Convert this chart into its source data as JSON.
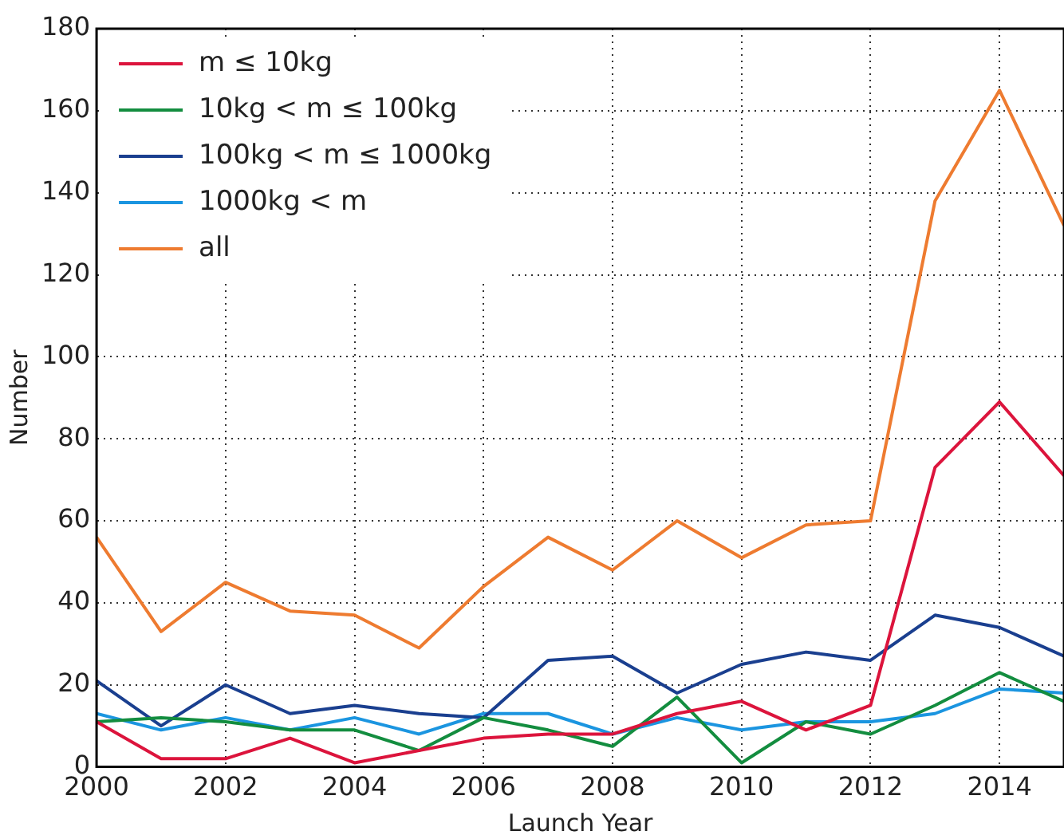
{
  "chart_data": {
    "type": "line",
    "xlabel": "Launch Year",
    "ylabel": "Number",
    "x": [
      2000,
      2001,
      2002,
      2003,
      2004,
      2005,
      2006,
      2007,
      2008,
      2009,
      2010,
      2011,
      2012,
      2013,
      2014,
      2015
    ],
    "xlim": [
      2000,
      2015
    ],
    "xticks": [
      2000,
      2002,
      2004,
      2006,
      2008,
      2010,
      2012,
      2014
    ],
    "ylim": [
      0,
      180
    ],
    "yticks": [
      0,
      20,
      40,
      60,
      80,
      100,
      120,
      140,
      160,
      180
    ],
    "grid": true,
    "legend": "top left",
    "marker": "none",
    "line_style": "solid",
    "series": [
      {
        "name": "m ≤ 10kg",
        "color": "#dc143c",
        "values": [
          11,
          2,
          2,
          7,
          1,
          4,
          7,
          8,
          8,
          13,
          16,
          9,
          15,
          73,
          89,
          71
        ]
      },
      {
        "name": "10kg < m ≤ 100kg",
        "color": "#138d3f",
        "values": [
          11,
          12,
          11,
          9,
          9,
          4,
          12,
          9,
          5,
          17,
          1,
          11,
          8,
          15,
          23,
          16
        ]
      },
      {
        "name": "100kg < m ≤ 1000kg",
        "color": "#1a3f8f",
        "values": [
          21,
          10,
          20,
          13,
          15,
          13,
          12,
          26,
          27,
          18,
          25,
          28,
          26,
          37,
          34,
          27
        ]
      },
      {
        "name": "1000kg < m",
        "color": "#1b95e0",
        "values": [
          13,
          9,
          12,
          9,
          12,
          8,
          13,
          13,
          8,
          12,
          9,
          11,
          11,
          13,
          19,
          18
        ]
      },
      {
        "name": "all",
        "color": "#ee7b30",
        "values": [
          56,
          33,
          45,
          38,
          37,
          29,
          44,
          56,
          48,
          60,
          51,
          59,
          60,
          138,
          165,
          132
        ]
      }
    ]
  }
}
